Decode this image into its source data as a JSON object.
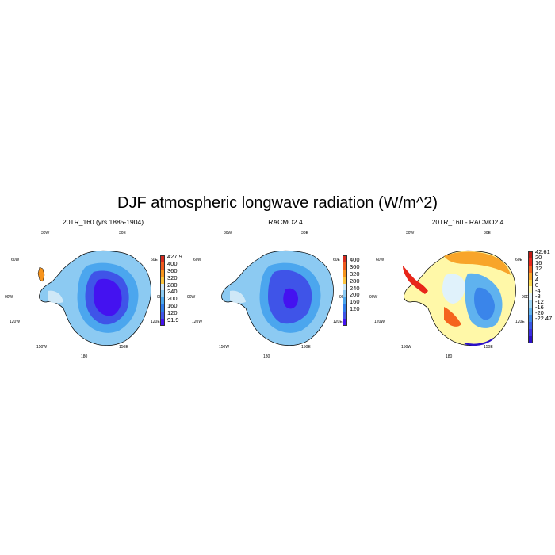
{
  "title": "DJF atmospheric longwave radiation (W/m^2)",
  "lon_labels": {
    "w30": "30W",
    "e30": "30E",
    "w60": "60W",
    "e60": "60E",
    "w90": "90W",
    "e90": "90E",
    "w120": "120W",
    "e120": "120E",
    "w150": "150W",
    "e150": "150E",
    "l180": "180"
  },
  "panels": [
    {
      "title": "20TR_160 (yrs 1885-1904)",
      "colorbar": [
        "427.9",
        "400",
        "360",
        "320",
        "280",
        "240",
        "200",
        "160",
        "120",
        "91.9"
      ],
      "colors": [
        "#d62a1e",
        "#f05a1e",
        "#f7941d",
        "#fcc43c",
        "#cfe8f7",
        "#8ccaf2",
        "#4ba6ee",
        "#2e7bea",
        "#3f54e8",
        "#4412f0"
      ]
    },
    {
      "title": "RACMO2.4",
      "colorbar": [
        "400",
        "360",
        "320",
        "280",
        "240",
        "200",
        "160",
        "120"
      ],
      "colors": [
        "#d62a1e",
        "#f05a1e",
        "#f7941d",
        "#fcc43c",
        "#cfe8f7",
        "#8ccaf2",
        "#4ba6ee",
        "#2e7bea",
        "#3f54e8",
        "#4412f0"
      ]
    },
    {
      "title": "20TR_160 - RACMO2.4",
      "colorbar": [
        "42.61",
        "20",
        "16",
        "12",
        "8",
        "4",
        "0",
        "-4",
        "-8",
        "-12",
        "-16",
        "-20",
        "-22.47"
      ],
      "colors": [
        "#c01a14",
        "#e8261a",
        "#f5641e",
        "#f8a52a",
        "#fcd84a",
        "#fff8a8",
        "#e0f2fb",
        "#9cd4f5",
        "#5fb2ef",
        "#3a85ea",
        "#3957e6",
        "#3b2fe2",
        "#2b10c8"
      ]
    }
  ]
}
